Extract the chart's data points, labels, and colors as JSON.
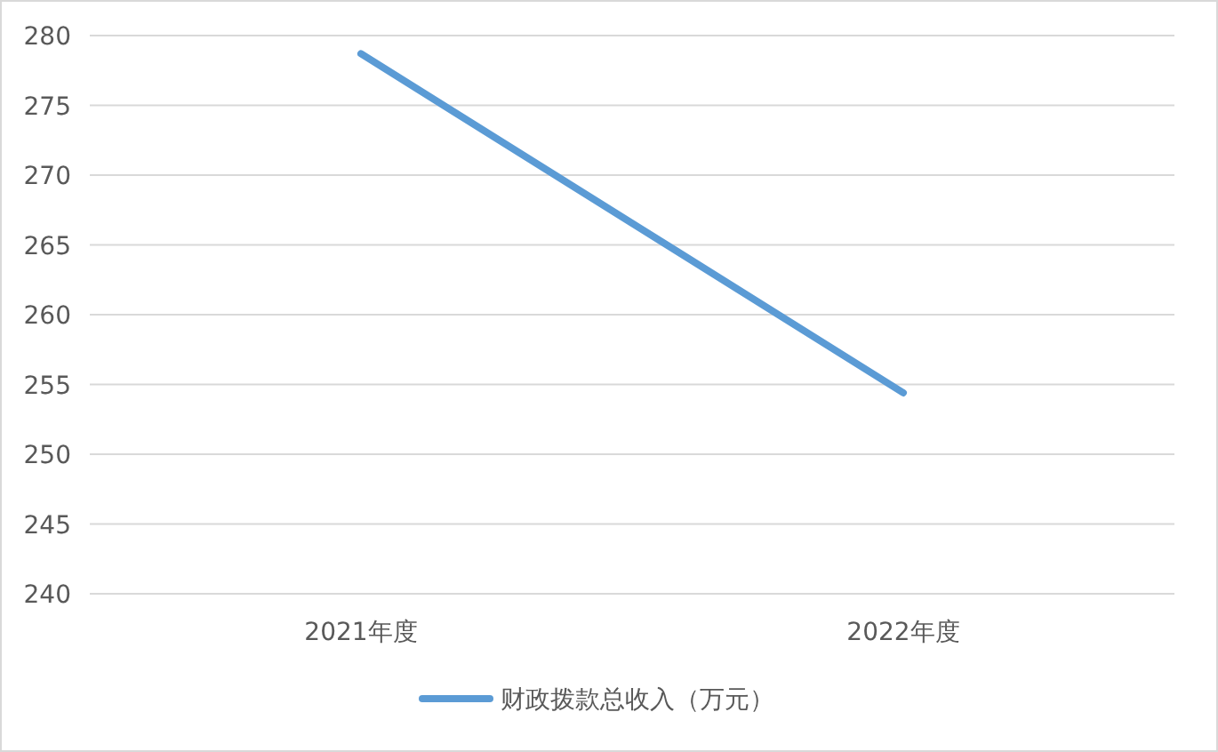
{
  "chart_data": {
    "type": "line",
    "categories": [
      "2021年度",
      "2022年度"
    ],
    "series": [
      {
        "name": "财政拨款总收入（万元）",
        "color": "#5b9bd5",
        "values": [
          278.7,
          254.4
        ]
      }
    ],
    "ylim": [
      240,
      280
    ],
    "yticks": [
      240,
      245,
      250,
      255,
      260,
      265,
      270,
      275,
      280
    ],
    "grid": "y",
    "legend": "bottom",
    "marker": "none",
    "line_style": "solid"
  }
}
